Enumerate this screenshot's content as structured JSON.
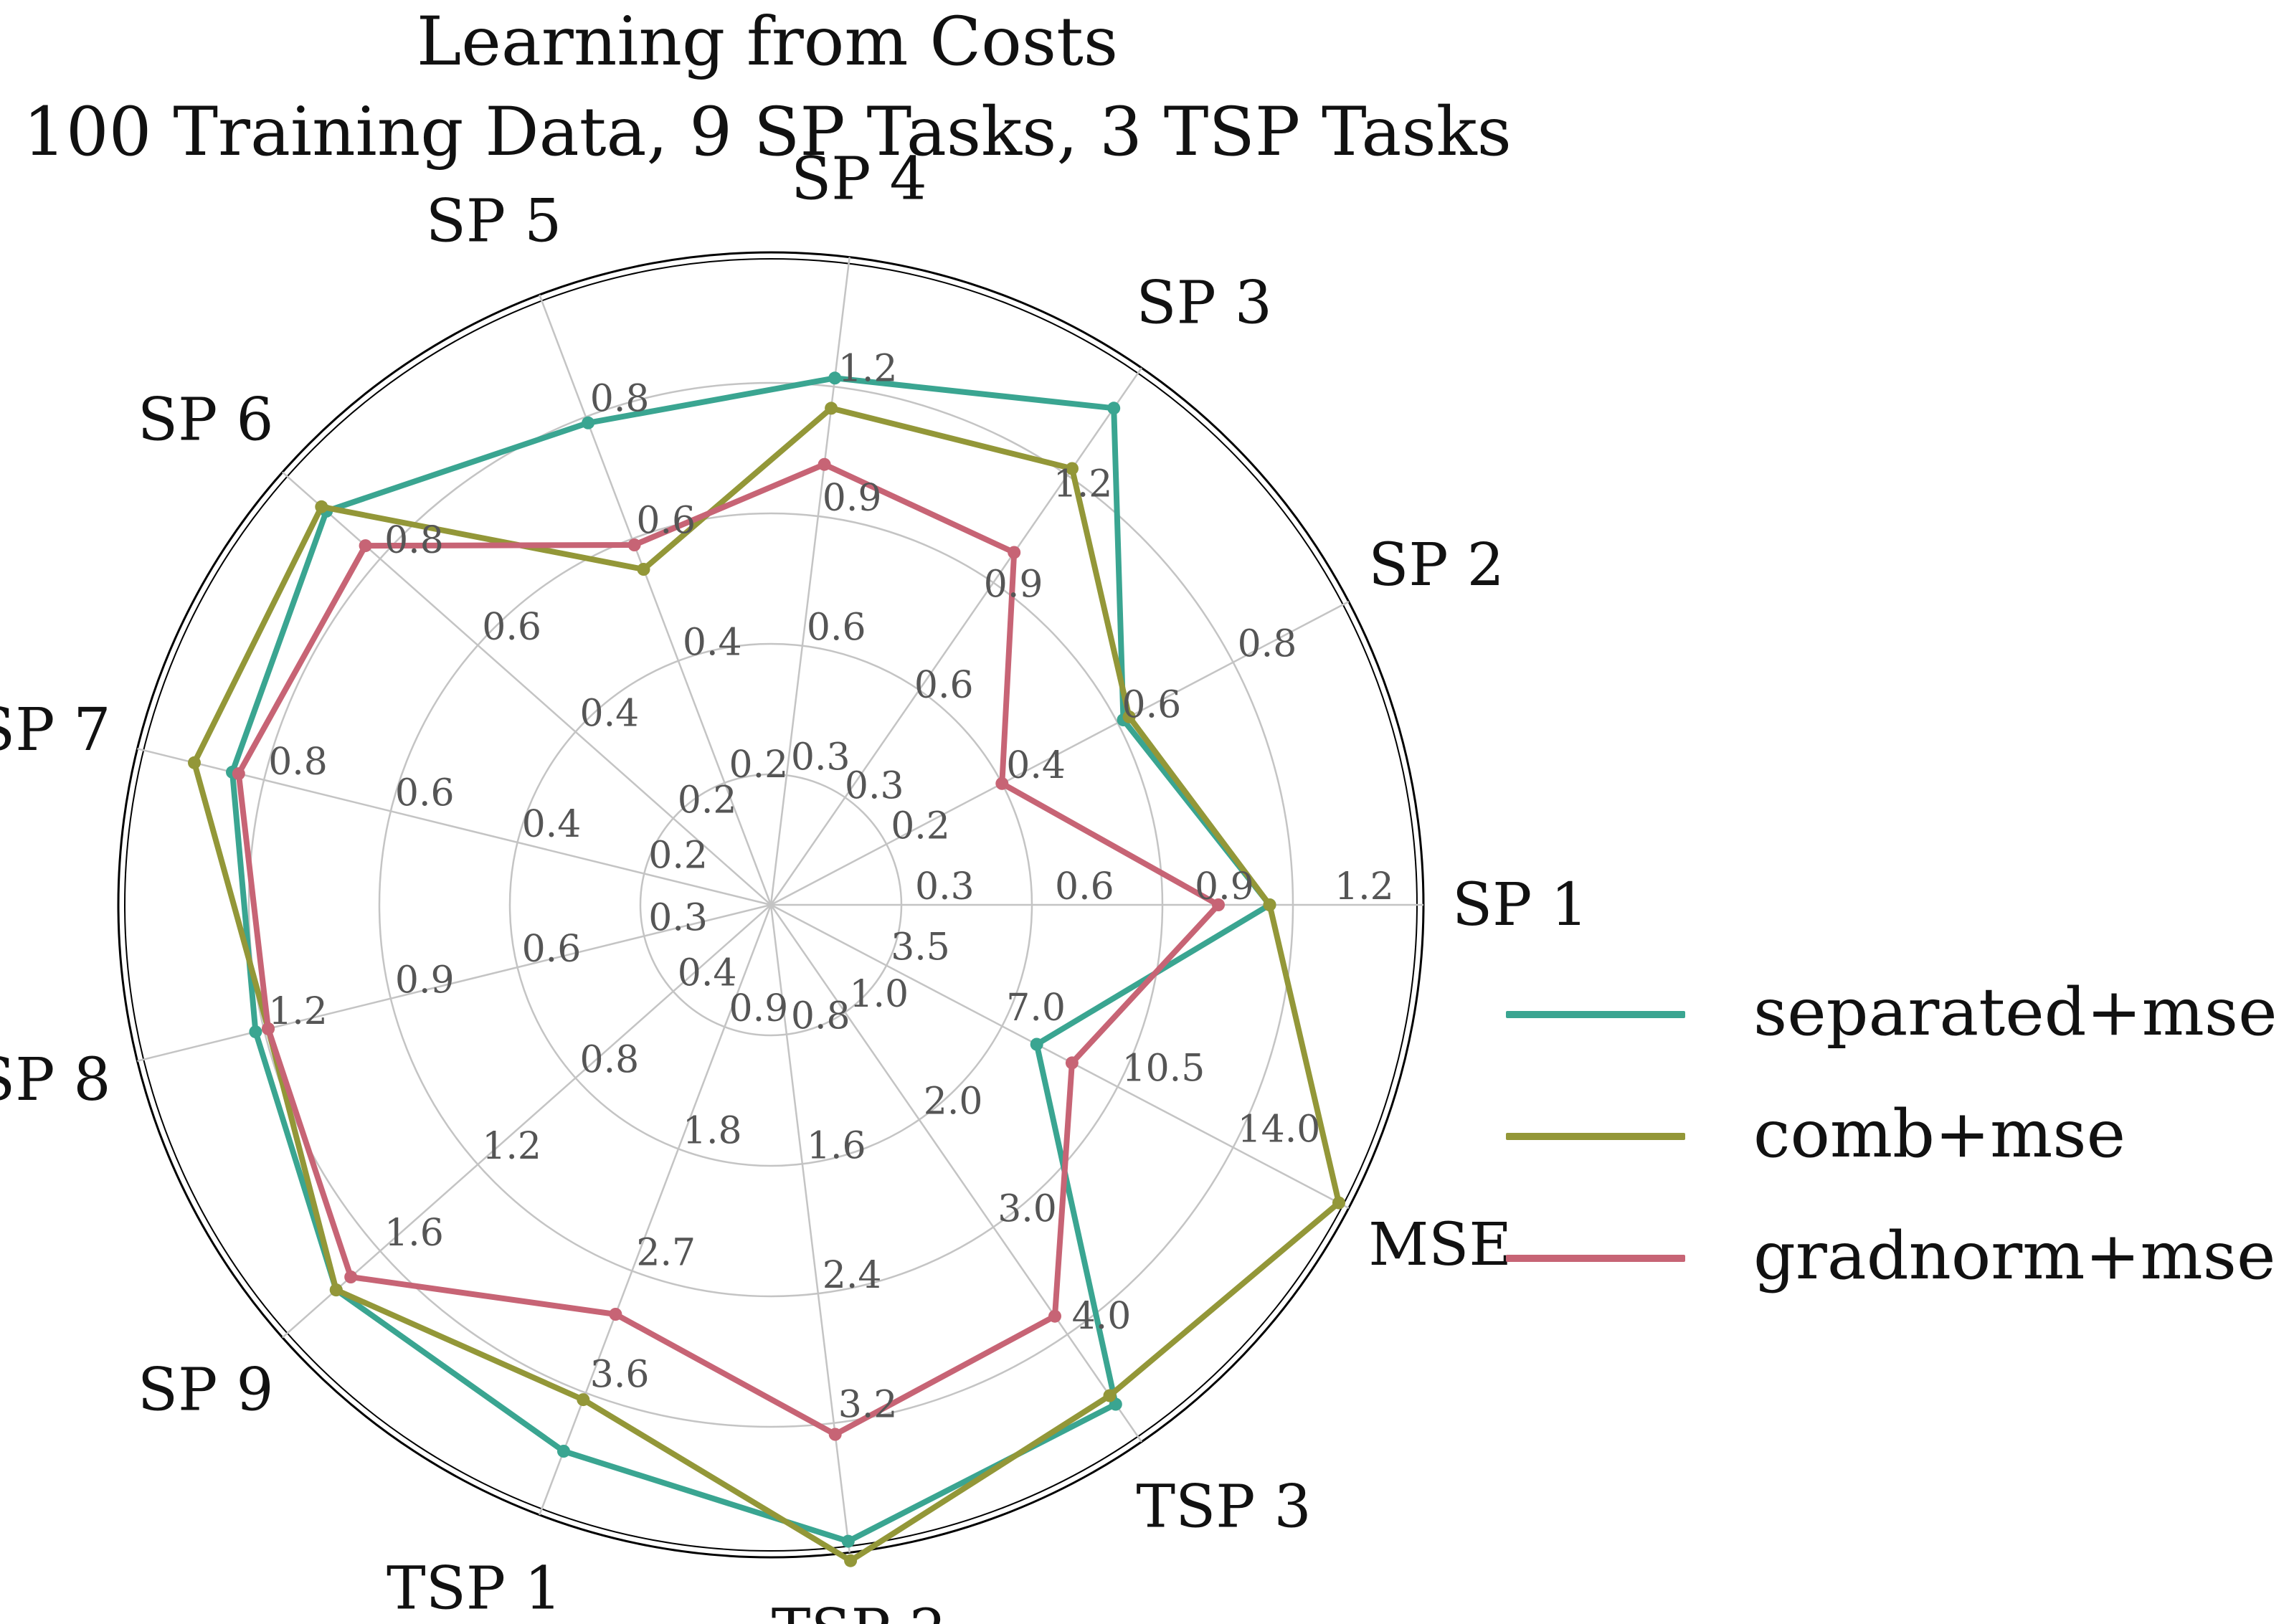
{
  "title": [
    "Learning from Costs",
    "100 Training Data, 9 SP Tasks, 3 TSP Tasks"
  ],
  "chart_data": {
    "type": "radar",
    "axes": [
      "SP 1",
      "SP 2",
      "SP 3",
      "SP 4",
      "SP 5",
      "SP 6",
      "SP 7",
      "SP 8",
      "SP 9",
      "TSP 1",
      "TSP 2",
      "TSP 3",
      "MSE"
    ],
    "ranges": [
      [
        0,
        1.4
      ],
      [
        0,
        1.0
      ],
      [
        0,
        1.6
      ],
      [
        0,
        1.5
      ],
      [
        0,
        1.0
      ],
      [
        0,
        1.0
      ],
      [
        0,
        1.0
      ],
      [
        0,
        1.5
      ],
      [
        0,
        2.0
      ],
      [
        0,
        4.5
      ],
      [
        0,
        4.0
      ],
      [
        0,
        5.0
      ],
      [
        0,
        17.5
      ]
    ],
    "ticks": [
      [
        "0.3",
        "0.6",
        "0.9",
        "1.2"
      ],
      [
        "0.2",
        "0.4",
        "0.6",
        "0.8"
      ],
      [
        "0.3",
        "0.6",
        "0.9",
        "1.2"
      ],
      [
        "0.3",
        "0.6",
        "0.9",
        "1.2"
      ],
      [
        "0.2",
        "0.4",
        "0.6",
        "0.8"
      ],
      [
        "0.2",
        "0.4",
        "0.6",
        "0.8"
      ],
      [
        "0.2",
        "0.4",
        "0.6",
        "0.8"
      ],
      [
        "0.3",
        "0.6",
        "0.9",
        "1.2"
      ],
      [
        "0.4",
        "0.8",
        "1.2",
        "1.6"
      ],
      [
        "0.9",
        "1.8",
        "2.7",
        "3.6"
      ],
      [
        "0.8",
        "1.6",
        "2.4",
        "3.2"
      ],
      [
        "1.0",
        "2.0",
        "3.0",
        "4.0"
      ],
      [
        "3.5",
        "7.0",
        "10.5",
        "14.0"
      ]
    ],
    "series": [
      {
        "name": "separated+mse",
        "color": "#3aa591",
        "values": [
          1.07,
          0.61,
          1.48,
          1.22,
          0.79,
          0.91,
          0.85,
          1.22,
          1.78,
          4.03,
          3.93,
          4.65,
          8.05
        ]
      },
      {
        "name": "comb+mse",
        "color": "#939738",
        "values": [
          1.07,
          0.62,
          1.3,
          1.15,
          0.55,
          0.92,
          0.91,
          1.19,
          1.78,
          3.65,
          4.05,
          4.57,
          17.2
        ]
      },
      {
        "name": "gradnorm+mse",
        "color": "#c76475",
        "values": [
          0.96,
          0.4,
          1.05,
          1.02,
          0.59,
          0.83,
          0.84,
          1.19,
          1.72,
          3.02,
          3.27,
          3.83,
          9.12
        ]
      }
    ]
  }
}
